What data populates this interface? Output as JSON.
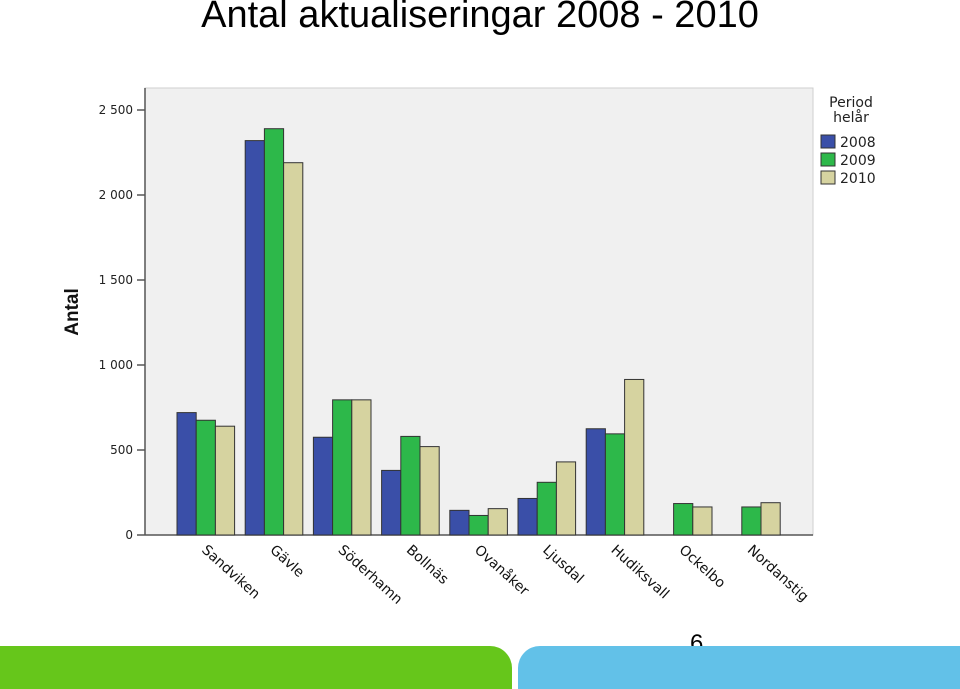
{
  "title": "Antal aktualiseringar 2008 - 2010",
  "page_number": "6",
  "chart_data": {
    "type": "bar",
    "categories": [
      "Sandviken",
      "Gävle",
      "Söderhamn",
      "Bollnäs",
      "Ovanåker",
      "Ljusdal",
      "Hudiksvall",
      "Ockelbo",
      "Nordanstig"
    ],
    "series": [
      {
        "name": "2008",
        "color": "#3a4fa8",
        "values": [
          720,
          2320,
          575,
          380,
          145,
          215,
          625,
          0,
          0
        ]
      },
      {
        "name": "2009",
        "color": "#2db84a",
        "values": [
          675,
          2390,
          795,
          580,
          115,
          310,
          595,
          185,
          165
        ]
      },
      {
        "name": "2010",
        "color": "#d6d3a0",
        "values": [
          640,
          2190,
          795,
          520,
          155,
          430,
          915,
          165,
          190
        ]
      }
    ],
    "ylabel": "Antal",
    "xlabel": "",
    "ylim": [
      0,
      2500
    ],
    "yticks": [
      0,
      500,
      1000,
      1500,
      2000,
      2500
    ],
    "ytick_labels": [
      "0",
      "500",
      "1 000",
      "1 500",
      "2 000",
      "2 500"
    ],
    "legend": {
      "title_lines": [
        "Period",
        "helår"
      ],
      "placement": "right"
    },
    "plot_background": "#f0f0f0",
    "grid": false
  }
}
